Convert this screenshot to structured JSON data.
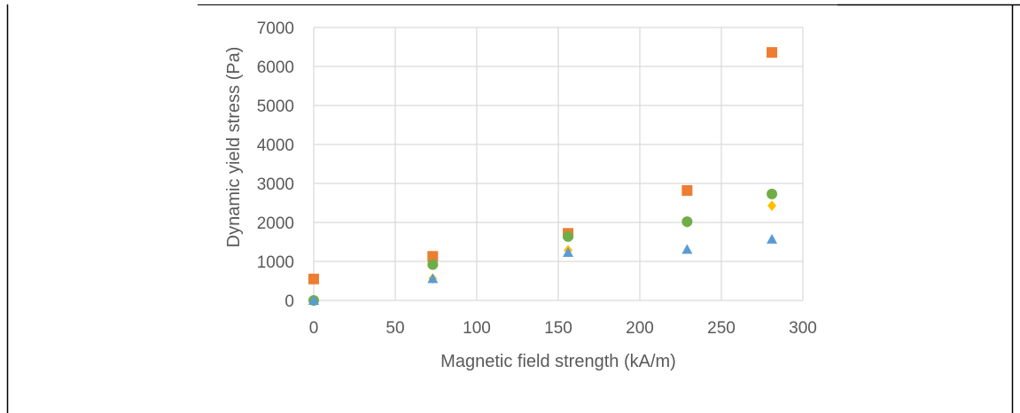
{
  "chart_data": {
    "type": "scatter",
    "xlabel": "Magnetic field strength (kA/m)",
    "ylabel": "Dynamic yield stress (Pa)",
    "xlim": [
      0,
      300
    ],
    "ylim": [
      0,
      7000
    ],
    "x_ticks": [
      "0",
      "50",
      "100",
      "150",
      "200",
      "250",
      "300"
    ],
    "y_ticks": [
      "0",
      "1000",
      "2000",
      "3000",
      "4000",
      "5000",
      "6000",
      "7000"
    ],
    "grid": true,
    "legend": "none",
    "series": [
      {
        "marker": "square",
        "color": "#ED7D31",
        "x": [
          0,
          73,
          156,
          229,
          281
        ],
        "y": [
          550,
          1130,
          1720,
          2820,
          6360
        ]
      },
      {
        "marker": "diamond",
        "color": "#FFC000",
        "x": [
          0,
          73,
          156,
          229,
          281
        ],
        "y": [
          0,
          560,
          1290,
          2000,
          2430
        ]
      },
      {
        "marker": "circle",
        "color": "#70AD47",
        "x": [
          0,
          73,
          156,
          229,
          281
        ],
        "y": [
          0,
          920,
          1640,
          2020,
          2730
        ]
      },
      {
        "marker": "triangle",
        "color": "#5B9BD5",
        "x": [
          0,
          73,
          156,
          229,
          281
        ],
        "y": [
          0,
          560,
          1230,
          1310,
          1570
        ]
      }
    ]
  }
}
